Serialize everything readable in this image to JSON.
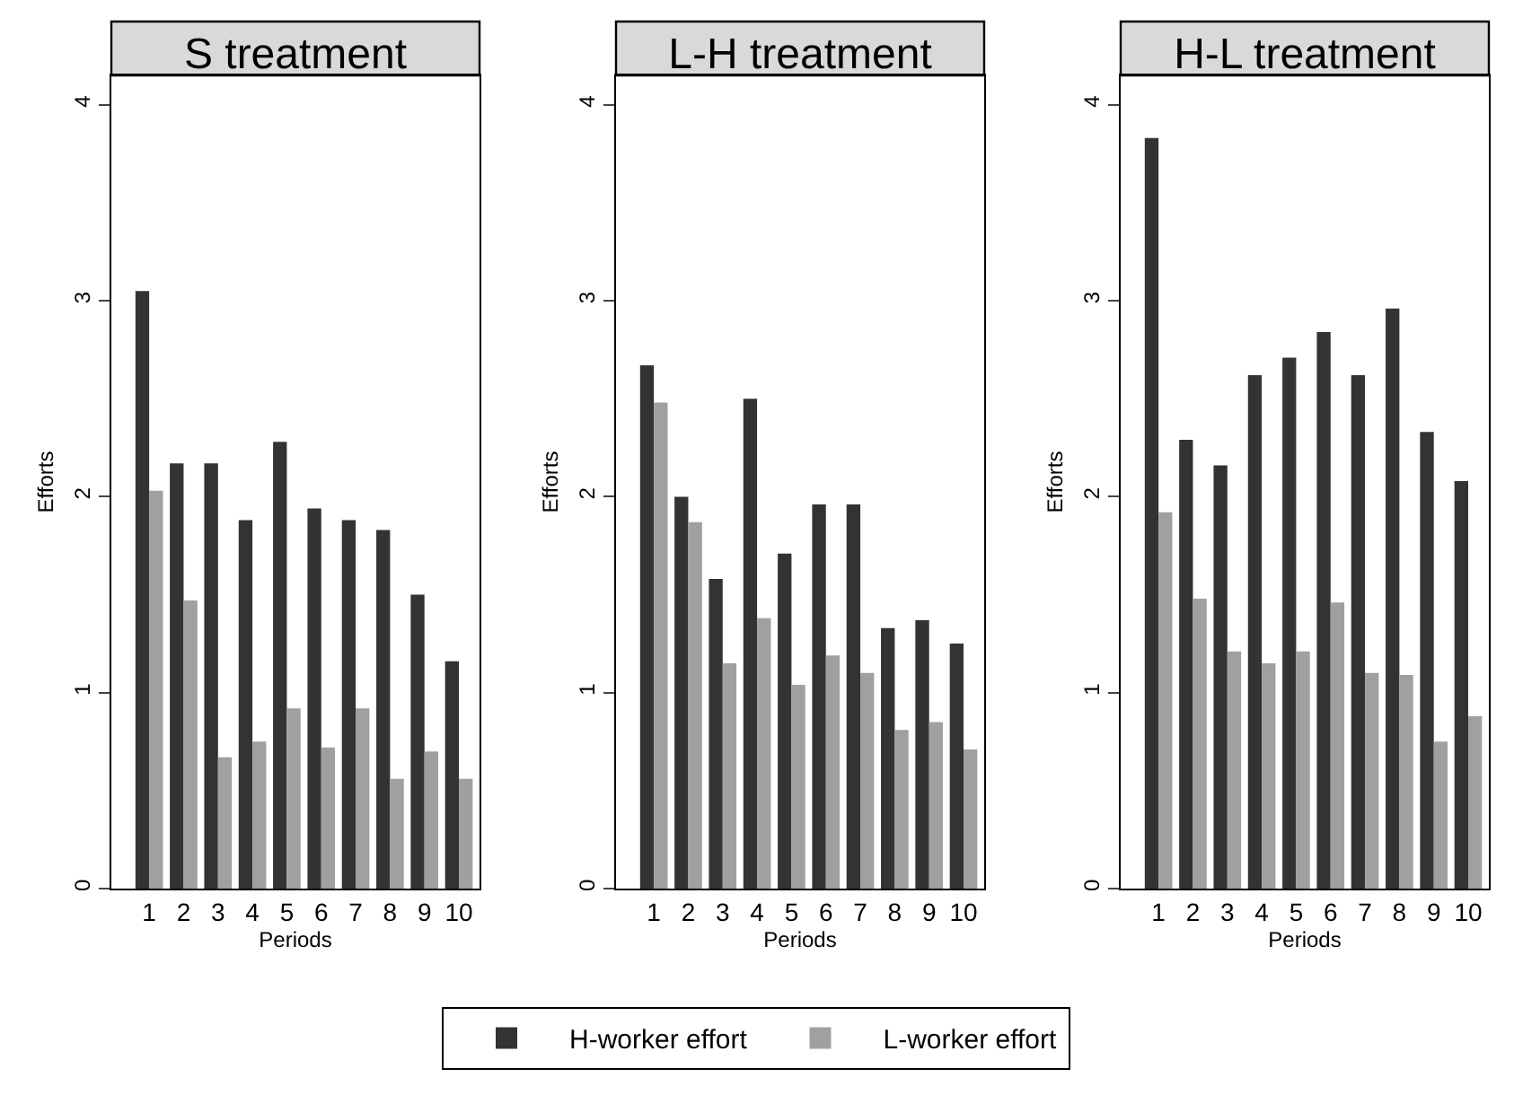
{
  "chart_data": [
    {
      "type": "bar",
      "title": "S treatment",
      "xlabel": "Periods",
      "ylabel": "Efforts",
      "categories": [
        "1",
        "2",
        "3",
        "4",
        "5",
        "6",
        "7",
        "8",
        "9",
        "10"
      ],
      "ylim": [
        0,
        4.15
      ],
      "yticks": [
        0,
        1,
        2,
        3,
        4
      ],
      "grid": false,
      "legend": "bottom",
      "series": [
        {
          "name": "H-worker effort",
          "color": "#333333",
          "values": [
            3.05,
            2.17,
            2.17,
            1.88,
            2.28,
            1.94,
            1.88,
            1.83,
            1.5,
            1.16
          ]
        },
        {
          "name": "L-worker effort",
          "color": "#a0a0a0",
          "values": [
            2.03,
            1.47,
            0.67,
            0.75,
            0.92,
            0.72,
            0.92,
            0.56,
            0.7,
            0.56
          ]
        }
      ]
    },
    {
      "type": "bar",
      "title": "L-H treatment",
      "xlabel": "Periods",
      "ylabel": "Efforts",
      "categories": [
        "1",
        "2",
        "3",
        "4",
        "5",
        "6",
        "7",
        "8",
        "9",
        "10"
      ],
      "ylim": [
        0,
        4.15
      ],
      "yticks": [
        0,
        1,
        2,
        3,
        4
      ],
      "grid": false,
      "series": [
        {
          "color": "#333333",
          "values": [
            2.67,
            2.0,
            1.58,
            2.5,
            1.71,
            1.96,
            1.96,
            1.33,
            1.37,
            1.25
          ]
        },
        {
          "color": "#a0a0a0",
          "values": [
            2.48,
            1.87,
            1.15,
            1.38,
            1.04,
            1.19,
            1.1,
            0.81,
            0.85,
            0.71
          ]
        }
      ]
    },
    {
      "type": "bar",
      "title": "H-L treatment",
      "xlabel": "Periods",
      "ylabel": "Efforts",
      "categories": [
        "1",
        "2",
        "3",
        "4",
        "5",
        "6",
        "7",
        "8",
        "9",
        "10"
      ],
      "ylim": [
        0,
        4.15
      ],
      "yticks": [
        0,
        1,
        2,
        3,
        4
      ],
      "grid": false,
      "series": [
        {
          "color": "#333333",
          "values": [
            3.83,
            2.29,
            2.16,
            2.62,
            2.71,
            2.84,
            2.62,
            2.96,
            2.33,
            2.08
          ]
        },
        {
          "color": "#a0a0a0",
          "values": [
            1.92,
            1.48,
            1.21,
            1.15,
            1.21,
            1.46,
            1.1,
            1.09,
            0.75,
            0.88
          ]
        }
      ]
    }
  ]
}
